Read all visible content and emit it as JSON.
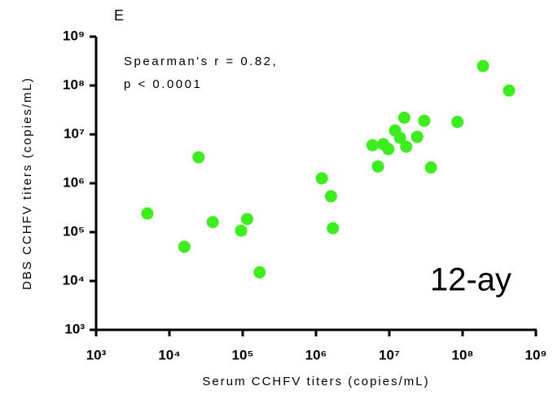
{
  "chart_data": {
    "type": "scatter",
    "panel_label": "E",
    "annotations": [
      "Spearman's r = 0.82,",
      "p < 0.0001"
    ],
    "label": "12-ay",
    "xlabel": "Serum CCHFV titers (copies/mL)",
    "ylabel": "DBS CCHFV titers (copies/mL)",
    "xscale": "log",
    "yscale": "log",
    "xlim": [
      1000,
      1000000000
    ],
    "ylim": [
      1000,
      1000000000
    ],
    "xticks": [
      {
        "value": 1000,
        "label": "10³"
      },
      {
        "value": 10000,
        "label": "10⁴"
      },
      {
        "value": 100000,
        "label": "10⁵"
      },
      {
        "value": 1000000,
        "label": "10⁶"
      },
      {
        "value": 10000000,
        "label": "10⁷"
      },
      {
        "value": 100000000,
        "label": "10⁸"
      },
      {
        "value": 1000000000,
        "label": "10⁹"
      }
    ],
    "yticks": [
      {
        "value": 1000,
        "label": "10³"
      },
      {
        "value": 10000,
        "label": "10⁴"
      },
      {
        "value": 100000,
        "label": "10⁵"
      },
      {
        "value": 1000000,
        "label": "10⁶"
      },
      {
        "value": 10000000,
        "label": "10⁷"
      },
      {
        "value": 100000000,
        "label": "10⁸"
      },
      {
        "value": 1000000000,
        "label": "10⁹"
      }
    ],
    "color": "#3dee1e",
    "x": [
      5000,
      16000,
      25000,
      39000,
      95000,
      115000,
      170000,
      1200000,
      1600000,
      1700000,
      5900000,
      7000000,
      8300000,
      9700000,
      12000000,
      14000000,
      16000000,
      17000000,
      24000000,
      30000000,
      37000000,
      85000000,
      190000000,
      430000000
    ],
    "values": [
      240000,
      50000,
      3400000,
      160000,
      107000,
      185000,
      15000,
      1260000,
      540000,
      120000,
      6000000,
      2200000,
      6300000,
      5000000,
      12000000,
      8500000,
      22000000,
      5600000,
      8900000,
      19000000,
      2100000,
      18000000,
      250000000,
      79000000
    ]
  }
}
